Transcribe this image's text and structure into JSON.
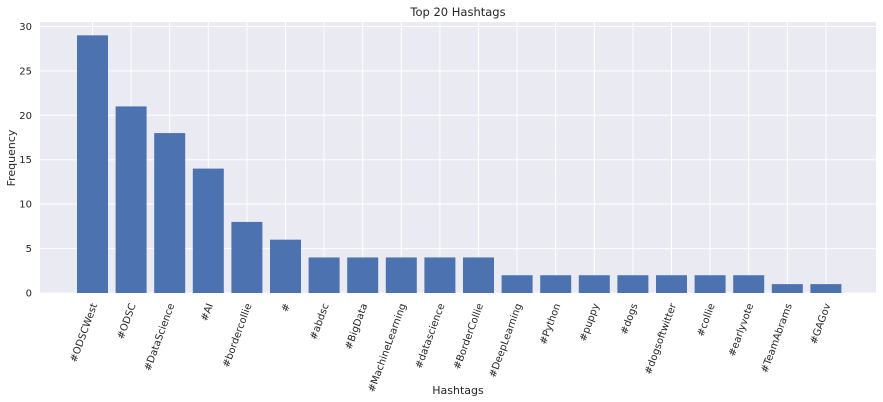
{
  "chart_data": {
    "type": "bar",
    "title": "Top 20 Hashtags",
    "xlabel": "Hashtags",
    "ylabel": "Frequency",
    "categories": [
      "#ODSCWest",
      "#ODSC",
      "#DataScience",
      "#AI",
      "#bordercollie",
      "#",
      "#abdsc",
      "#BigData",
      "#MachineLearning",
      "#datascience",
      "#BorderCollie",
      "#DeepLearning",
      "#Python",
      "#puppy",
      "#dogs",
      "#dogsoftwitter",
      "#collie",
      "#earlyvote",
      "#TeamAbrams",
      "#GAGov"
    ],
    "values": [
      29,
      21,
      18,
      14,
      8,
      6,
      4,
      4,
      4,
      4,
      4,
      2,
      2,
      2,
      2,
      2,
      2,
      2,
      1,
      1
    ],
    "ylim": [
      0,
      30.5
    ],
    "yticks": [
      0,
      5,
      10,
      15,
      20,
      25,
      30
    ],
    "grid": true,
    "colors": {
      "bar": "#4c72b0",
      "plot_bg": "#eaeaf2",
      "grid": "#ffffff",
      "text": "#262626"
    }
  }
}
